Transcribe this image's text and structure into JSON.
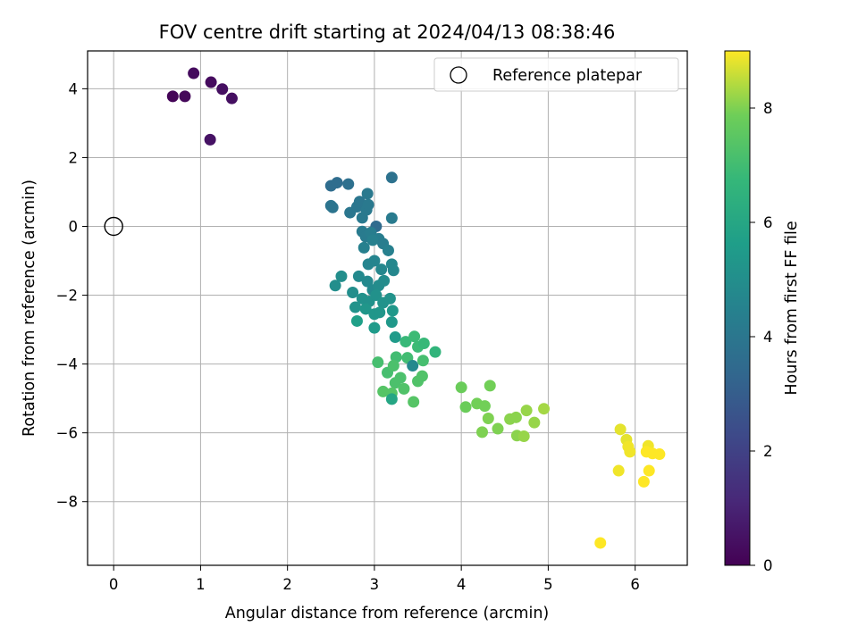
{
  "chart_data": {
    "type": "scatter",
    "title": "FOV centre drift starting at 2024/04/13 08:38:46",
    "xlabel": "Angular distance from reference (arcmin)",
    "ylabel": "Rotation from reference (arcmin)",
    "colorbar_label": "Hours from first FF file",
    "xlim": [
      -0.3,
      6.6
    ],
    "ylim": [
      -9.85,
      5.1
    ],
    "clim": [
      0,
      9.0
    ],
    "x_ticks": [
      0,
      1,
      2,
      3,
      4,
      5,
      6
    ],
    "x_tick_labels": [
      "0",
      "1",
      "2",
      "3",
      "4",
      "5",
      "6"
    ],
    "y_ticks": [
      4,
      2,
      0,
      -2,
      -4,
      -6,
      -8
    ],
    "y_tick_labels": [
      "4",
      "2",
      "0",
      "−2",
      "−4",
      "−6",
      "−8"
    ],
    "colorbar_ticks": [
      0,
      2,
      4,
      6,
      8
    ],
    "colorbar_tick_labels": [
      "0",
      "2",
      "4",
      "6",
      "8"
    ],
    "grid": true,
    "colormap": "viridis",
    "legend": {
      "position": "top-right",
      "entries": [
        "Reference platepar"
      ]
    },
    "reference_point": {
      "x": 0,
      "y": 0
    },
    "points": [
      {
        "x": 0.68,
        "y": 3.78,
        "c": 0.1
      },
      {
        "x": 0.82,
        "y": 3.78,
        "c": 0.2
      },
      {
        "x": 0.92,
        "y": 4.45,
        "c": 0.3
      },
      {
        "x": 1.12,
        "y": 4.19,
        "c": 0.3
      },
      {
        "x": 1.25,
        "y": 3.99,
        "c": 0.4
      },
      {
        "x": 1.36,
        "y": 3.72,
        "c": 0.4
      },
      {
        "x": 1.11,
        "y": 2.52,
        "c": 0.5
      },
      {
        "x": 2.5,
        "y": 1.18,
        "c": 3.6
      },
      {
        "x": 2.57,
        "y": 1.27,
        "c": 3.6
      },
      {
        "x": 2.7,
        "y": 1.23,
        "c": 3.7
      },
      {
        "x": 3.2,
        "y": 1.42,
        "c": 3.8
      },
      {
        "x": 2.5,
        "y": 0.6,
        "c": 3.9
      },
      {
        "x": 2.52,
        "y": 0.55,
        "c": 3.9
      },
      {
        "x": 2.72,
        "y": 0.4,
        "c": 4.0
      },
      {
        "x": 2.8,
        "y": 0.57,
        "c": 4.0
      },
      {
        "x": 2.83,
        "y": 0.72,
        "c": 4.0
      },
      {
        "x": 2.92,
        "y": 0.95,
        "c": 4.1
      },
      {
        "x": 2.86,
        "y": 0.25,
        "c": 4.1
      },
      {
        "x": 2.91,
        "y": 0.48,
        "c": 4.1
      },
      {
        "x": 2.93,
        "y": 0.63,
        "c": 4.1
      },
      {
        "x": 3.02,
        "y": 0.0,
        "c": 3.5
      },
      {
        "x": 3.2,
        "y": 0.24,
        "c": 4.2
      },
      {
        "x": 2.86,
        "y": -0.15,
        "c": 4.2
      },
      {
        "x": 2.9,
        "y": -0.3,
        "c": 4.2
      },
      {
        "x": 2.96,
        "y": -0.18,
        "c": 4.3
      },
      {
        "x": 3.05,
        "y": -0.36,
        "c": 4.3
      },
      {
        "x": 3.1,
        "y": -0.5,
        "c": 4.3
      },
      {
        "x": 2.98,
        "y": -0.4,
        "c": 4.4
      },
      {
        "x": 3.16,
        "y": -0.7,
        "c": 4.4
      },
      {
        "x": 2.88,
        "y": -0.62,
        "c": 4.4
      },
      {
        "x": 2.93,
        "y": -1.1,
        "c": 4.6
      },
      {
        "x": 3.0,
        "y": -1.0,
        "c": 4.6
      },
      {
        "x": 3.08,
        "y": -1.25,
        "c": 4.7
      },
      {
        "x": 3.2,
        "y": -1.1,
        "c": 4.7
      },
      {
        "x": 3.22,
        "y": -1.28,
        "c": 4.7
      },
      {
        "x": 2.82,
        "y": -1.45,
        "c": 4.8
      },
      {
        "x": 2.92,
        "y": -1.6,
        "c": 4.8
      },
      {
        "x": 2.98,
        "y": -1.85,
        "c": 4.8
      },
      {
        "x": 3.05,
        "y": -1.72,
        "c": 4.9
      },
      {
        "x": 3.11,
        "y": -1.58,
        "c": 4.9
      },
      {
        "x": 2.62,
        "y": -1.45,
        "c": 5.0
      },
      {
        "x": 2.55,
        "y": -1.72,
        "c": 5.0
      },
      {
        "x": 2.75,
        "y": -1.92,
        "c": 5.0
      },
      {
        "x": 2.86,
        "y": -2.1,
        "c": 5.1
      },
      {
        "x": 2.94,
        "y": -2.18,
        "c": 5.1
      },
      {
        "x": 3.02,
        "y": -2.0,
        "c": 5.1
      },
      {
        "x": 3.1,
        "y": -2.22,
        "c": 5.2
      },
      {
        "x": 3.18,
        "y": -2.1,
        "c": 5.2
      },
      {
        "x": 2.78,
        "y": -2.35,
        "c": 5.2
      },
      {
        "x": 2.9,
        "y": -2.4,
        "c": 5.3
      },
      {
        "x": 3.0,
        "y": -2.55,
        "c": 5.3
      },
      {
        "x": 3.06,
        "y": -2.5,
        "c": 5.3
      },
      {
        "x": 3.21,
        "y": -2.45,
        "c": 5.4
      },
      {
        "x": 3.2,
        "y": -2.78,
        "c": 5.4
      },
      {
        "x": 2.8,
        "y": -2.75,
        "c": 5.7
      },
      {
        "x": 3.0,
        "y": -2.95,
        "c": 5.5
      },
      {
        "x": 3.24,
        "y": -3.22,
        "c": 5.5
      },
      {
        "x": 3.36,
        "y": -3.35,
        "c": 6.8
      },
      {
        "x": 3.46,
        "y": -3.2,
        "c": 6.9
      },
      {
        "x": 3.5,
        "y": -3.5,
        "c": 6.9
      },
      {
        "x": 3.57,
        "y": -3.4,
        "c": 6.8
      },
      {
        "x": 3.7,
        "y": -3.65,
        "c": 6.6
      },
      {
        "x": 3.25,
        "y": -3.8,
        "c": 7.0
      },
      {
        "x": 3.38,
        "y": -3.82,
        "c": 7.0
      },
      {
        "x": 3.44,
        "y": -4.05,
        "c": 4.8
      },
      {
        "x": 3.56,
        "y": -3.9,
        "c": 7.1
      },
      {
        "x": 3.04,
        "y": -3.95,
        "c": 7.1
      },
      {
        "x": 3.15,
        "y": -4.25,
        "c": 7.1
      },
      {
        "x": 3.22,
        "y": -4.05,
        "c": 7.2
      },
      {
        "x": 3.3,
        "y": -4.4,
        "c": 7.2
      },
      {
        "x": 3.24,
        "y": -4.55,
        "c": 7.2
      },
      {
        "x": 3.34,
        "y": -4.72,
        "c": 7.3
      },
      {
        "x": 3.5,
        "y": -4.5,
        "c": 7.3
      },
      {
        "x": 3.55,
        "y": -4.35,
        "c": 7.3
      },
      {
        "x": 3.1,
        "y": -4.8,
        "c": 7.4
      },
      {
        "x": 3.2,
        "y": -4.85,
        "c": 7.4
      },
      {
        "x": 3.2,
        "y": -5.02,
        "c": 6.0
      },
      {
        "x": 3.45,
        "y": -5.1,
        "c": 7.4
      },
      {
        "x": 4.0,
        "y": -4.68,
        "c": 7.8
      },
      {
        "x": 4.05,
        "y": -5.25,
        "c": 7.8
      },
      {
        "x": 4.18,
        "y": -5.15,
        "c": 7.9
      },
      {
        "x": 4.27,
        "y": -5.22,
        "c": 7.9
      },
      {
        "x": 4.33,
        "y": -4.63,
        "c": 7.9
      },
      {
        "x": 4.31,
        "y": -5.58,
        "c": 8.0
      },
      {
        "x": 4.24,
        "y": -5.98,
        "c": 8.0
      },
      {
        "x": 4.42,
        "y": -5.88,
        "c": 8.0
      },
      {
        "x": 4.56,
        "y": -5.6,
        "c": 8.1
      },
      {
        "x": 4.63,
        "y": -5.55,
        "c": 8.1
      },
      {
        "x": 4.64,
        "y": -6.08,
        "c": 8.1
      },
      {
        "x": 4.72,
        "y": -6.1,
        "c": 8.2
      },
      {
        "x": 4.75,
        "y": -5.35,
        "c": 8.2
      },
      {
        "x": 4.84,
        "y": -5.7,
        "c": 8.2
      },
      {
        "x": 4.95,
        "y": -5.3,
        "c": 8.3
      },
      {
        "x": 5.83,
        "y": -5.9,
        "c": 8.8
      },
      {
        "x": 5.9,
        "y": -6.2,
        "c": 8.8
      },
      {
        "x": 5.92,
        "y": -6.4,
        "c": 8.9
      },
      {
        "x": 5.94,
        "y": -6.55,
        "c": 8.9
      },
      {
        "x": 5.81,
        "y": -7.1,
        "c": 8.9
      },
      {
        "x": 6.15,
        "y": -6.38,
        "c": 8.9
      },
      {
        "x": 6.13,
        "y": -6.55,
        "c": 9.0
      },
      {
        "x": 6.2,
        "y": -6.6,
        "c": 9.0
      },
      {
        "x": 6.28,
        "y": -6.62,
        "c": 9.0
      },
      {
        "x": 6.16,
        "y": -7.1,
        "c": 9.0
      },
      {
        "x": 6.1,
        "y": -7.42,
        "c": 9.0
      },
      {
        "x": 5.6,
        "y": -9.2,
        "c": 9.0
      }
    ]
  }
}
